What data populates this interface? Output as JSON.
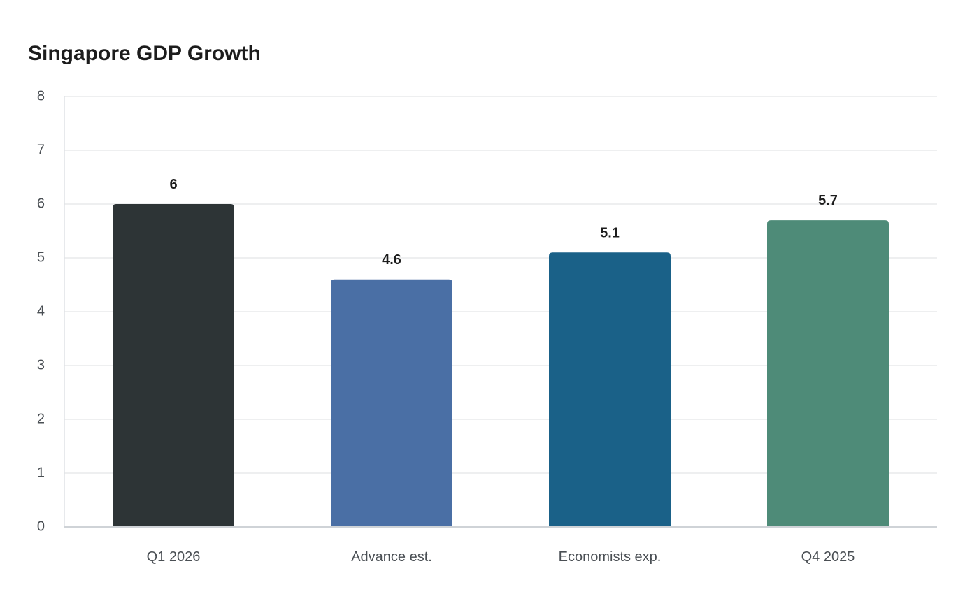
{
  "chart_data": {
    "type": "bar",
    "title": "Singapore GDP Growth",
    "xlabel": "",
    "ylabel": "",
    "categories": [
      "Q1 2026",
      "Advance est.",
      "Economists exp.",
      "Q4 2025"
    ],
    "values": [
      6,
      4.6,
      5.1,
      5.7
    ],
    "value_labels": [
      "6",
      "4.6",
      "5.1",
      "5.7"
    ],
    "colors": [
      "#2d3436",
      "#4a6fa5",
      "#1a6188",
      "#4e8b78"
    ],
    "ylim": [
      0,
      8
    ],
    "yticks": [
      0,
      1,
      2,
      3,
      4,
      5,
      6,
      7,
      8
    ],
    "grid": true,
    "legend": "none"
  }
}
